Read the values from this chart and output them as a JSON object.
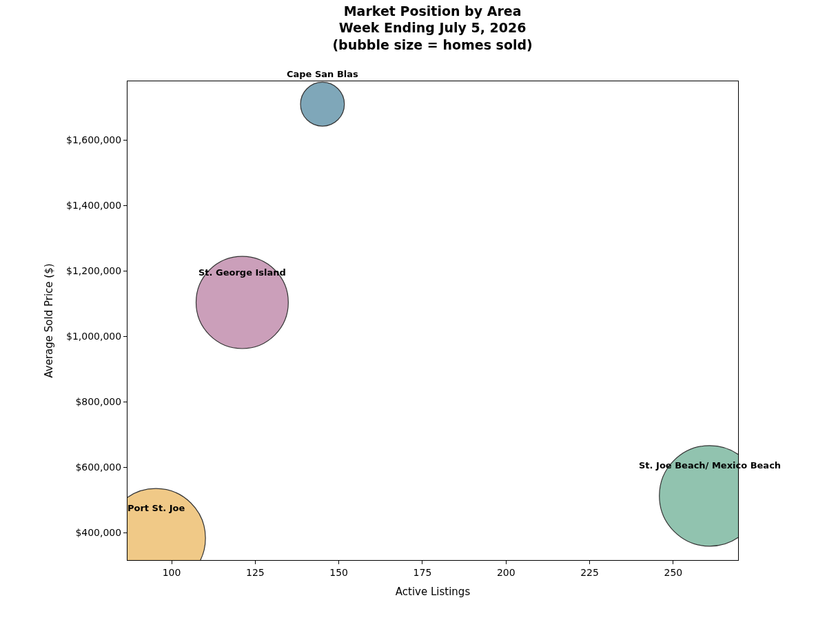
{
  "chart_data": {
    "type": "bubble",
    "title": "Market Position by Area\nWeek Ending July 5, 2026\n(bubble size = homes sold)",
    "xlabel": "Active Listings",
    "ylabel": "Average Sold Price ($)",
    "series": [
      {
        "name": "Cape San Blas",
        "color": "#7fa7b9",
        "x": [
          145.1
        ],
        "values": [
          1709000
        ],
        "sizes": [
          0.19
        ]
      },
      {
        "name": "St. George Island",
        "color": "#cb9fba",
        "x": [
          121.1
        ],
        "values": [
          1103000
        ],
        "sizes": [
          0.84
        ]
      },
      {
        "name": "St. Joe Beach/ Mexico Beach",
        "color": "#91c3af",
        "x": [
          260.9
        ],
        "values": [
          512000
        ],
        "sizes": [
          1
        ]
      },
      {
        "name": "Port St. Joe",
        "color": "#f0c987",
        "x": [
          95.3
        ],
        "values": [
          383000
        ],
        "sizes": [
          0.97
        ]
      }
    ],
    "xlim": [
      86.8,
      269.4
    ],
    "ylim": [
      315800,
      1779000
    ],
    "xticks": [
      100,
      125,
      150,
      175,
      200,
      225,
      250
    ],
    "yticks": [
      {
        "value": 400000,
        "label": "$400,000"
      },
      {
        "value": 600000,
        "label": "$600,000"
      },
      {
        "value": 800000,
        "label": "$800,000"
      },
      {
        "value": 1000000,
        "label": "$1,000,000"
      },
      {
        "value": 1200000,
        "label": "$1,200,000"
      },
      {
        "value": 1400000,
        "label": "$1,400,000"
      },
      {
        "value": 1600000,
        "label": "$1,600,000"
      }
    ],
    "legend": false
  }
}
